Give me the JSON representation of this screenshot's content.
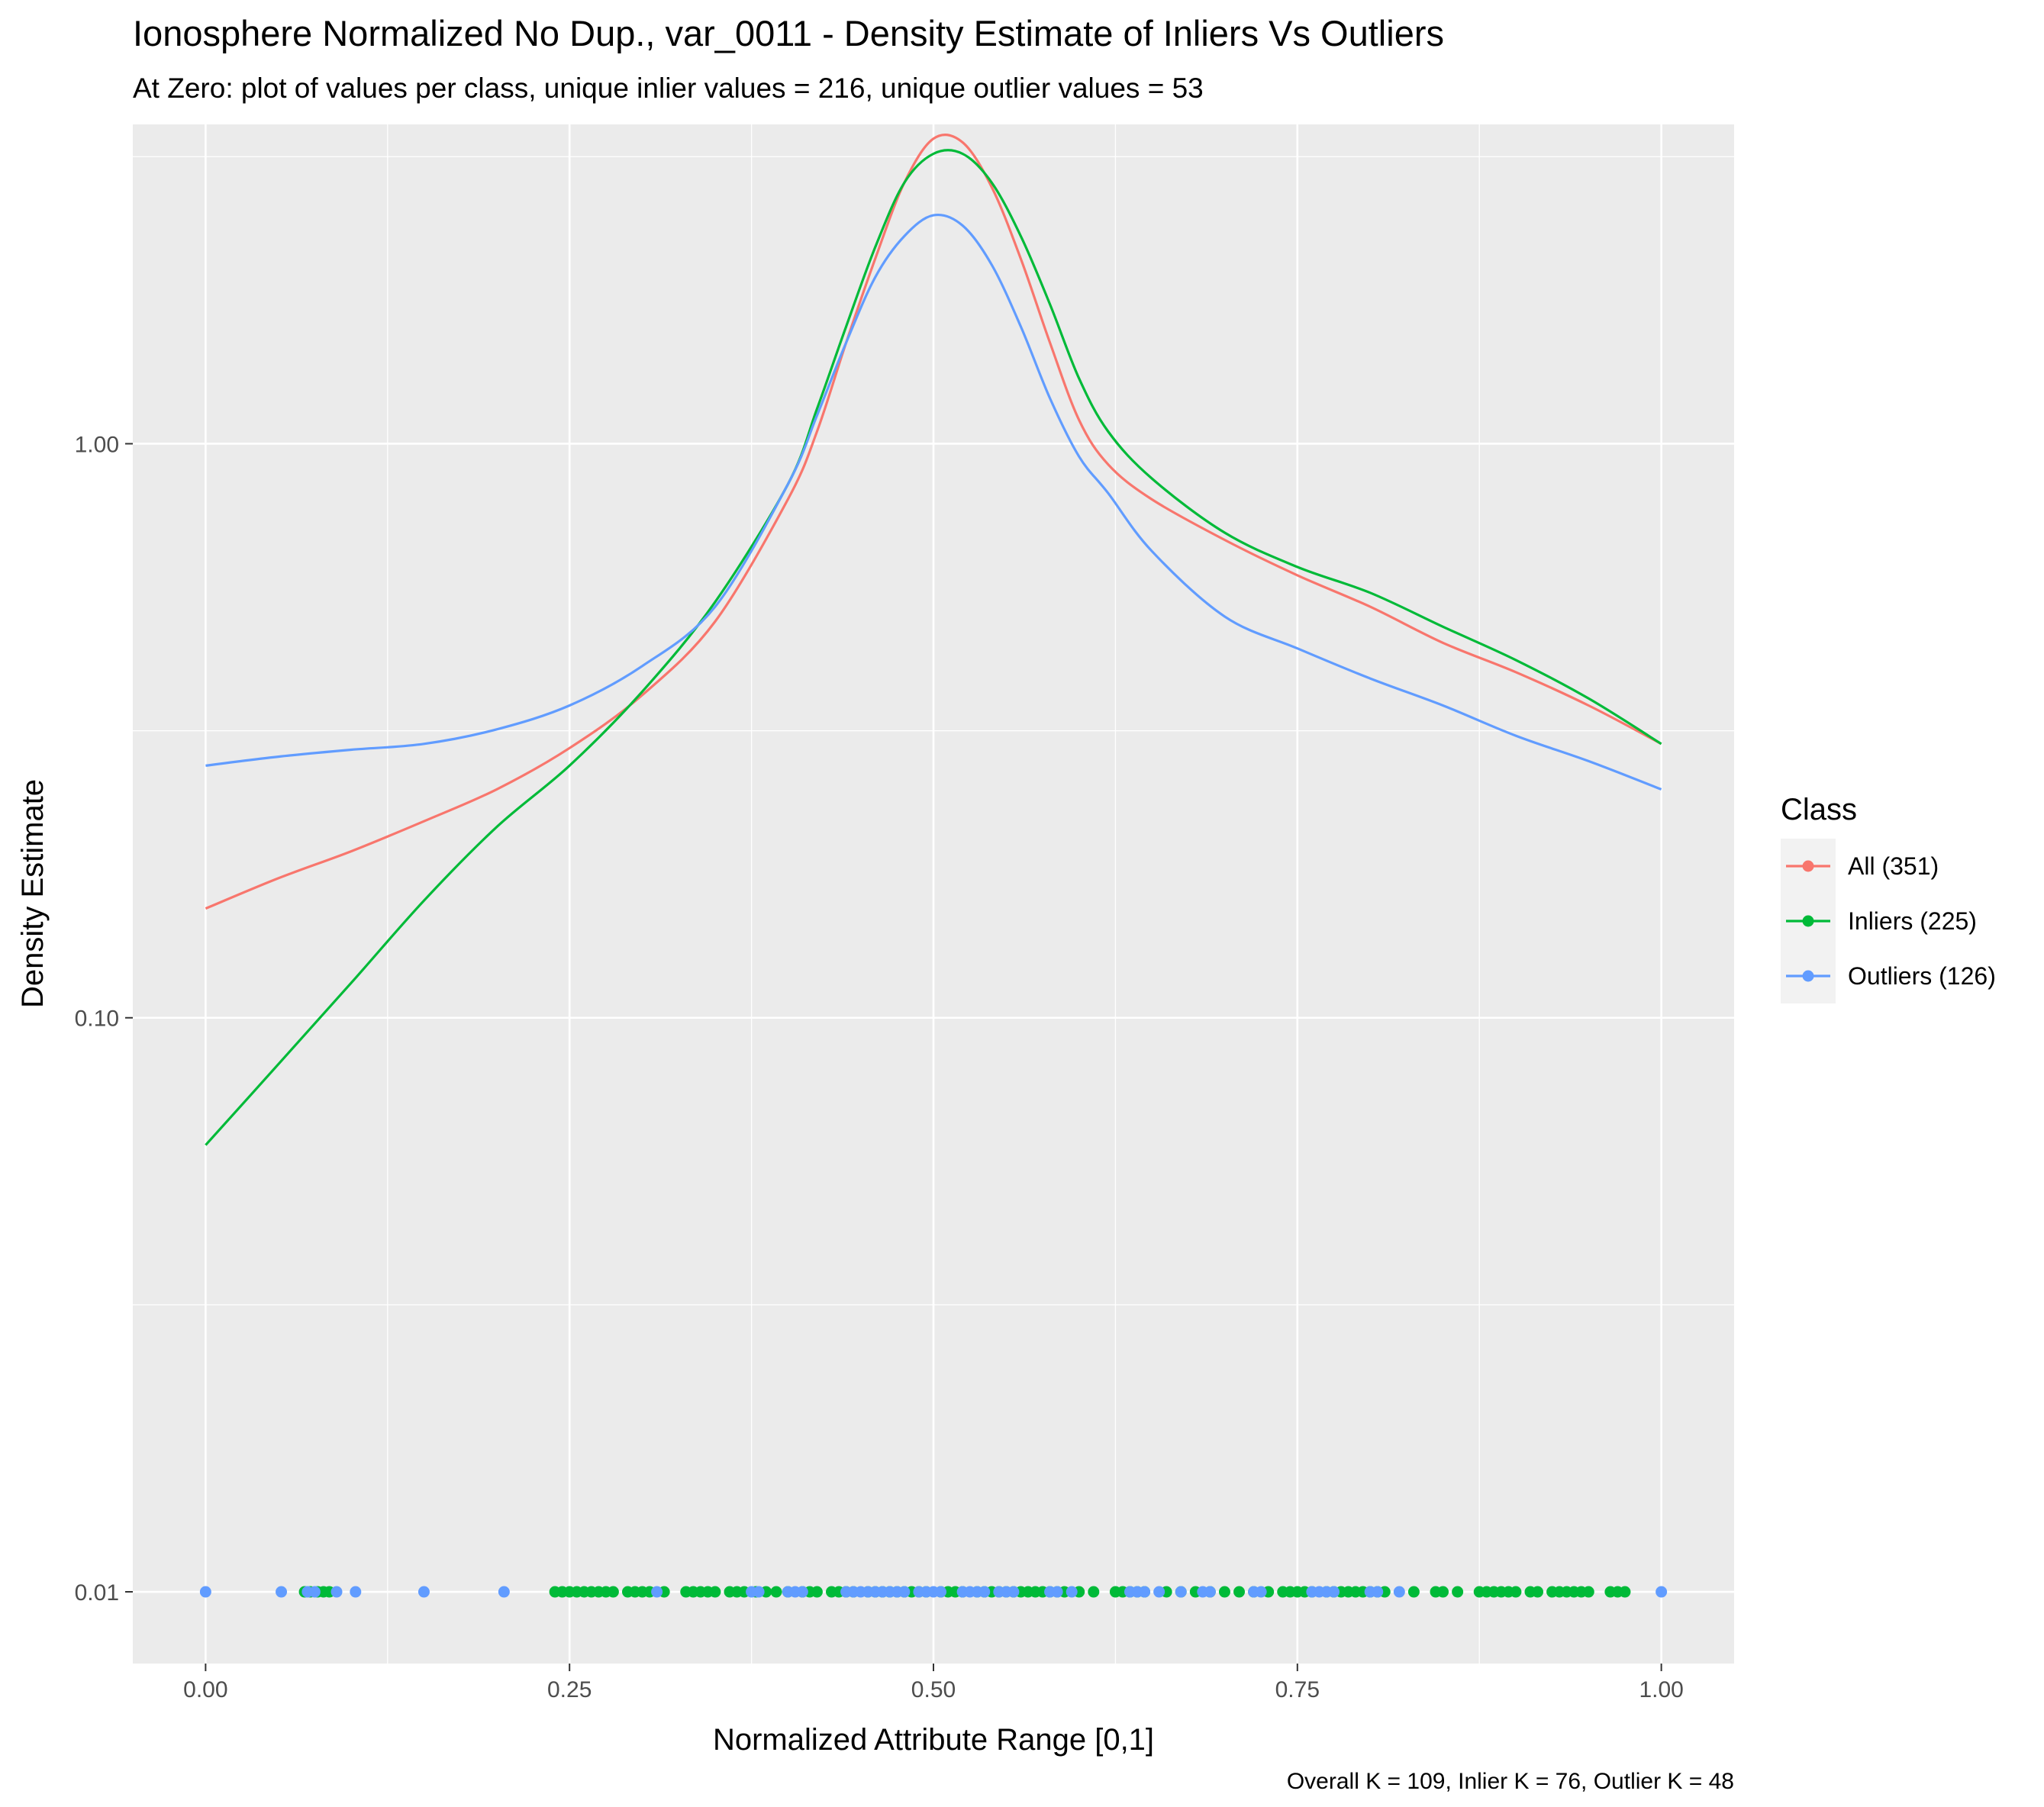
{
  "chart_data": {
    "type": "line",
    "title": "Ionosphere Normalized No Dup., var_0011 - Density Estimate of Inliers Vs Outliers",
    "subtitle": "At Zero: plot of values per class, unique inlier values = 216, unique outlier values = 53",
    "xlabel": "Normalized Attribute Range [0,1]",
    "ylabel": "Density Estimate",
    "caption": "Overall K = 109, Inlier K = 76, Outlier K = 48",
    "x_scale": "linear",
    "y_scale": "log10",
    "xlim": [
      -0.05,
      1.05
    ],
    "ylim": [
      0.0075,
      3.6
    ],
    "x_ticks": [
      0,
      0.25,
      0.5,
      0.75,
      1
    ],
    "x_tick_labels": [
      "0.00",
      "0.25",
      "0.50",
      "0.75",
      "1.00"
    ],
    "y_ticks": [
      0.01,
      0.1,
      1
    ],
    "y_tick_labels": [
      "0.01",
      "0.10",
      "1.00"
    ],
    "grid": true,
    "legend": {
      "title": "Class",
      "position": "right",
      "entries": [
        "All (351)",
        "Inliers (225)",
        "Outliers (126)"
      ]
    },
    "colors": {
      "All (351)": "#F8766D",
      "Inliers (225)": "#00BA38",
      "Outliers (126)": "#619CFF",
      "panel": "#EBEBEB",
      "grid": "#FFFFFF"
    },
    "series": [
      {
        "name": "All (351)",
        "x": [
          0,
          0.05,
          0.1,
          0.15,
          0.2,
          0.25,
          0.3,
          0.35,
          0.4,
          0.42,
          0.44,
          0.46,
          0.48,
          0.5,
          0.52,
          0.54,
          0.56,
          0.58,
          0.6,
          0.62,
          0.65,
          0.7,
          0.75,
          0.8,
          0.85,
          0.9,
          0.95,
          1
        ],
        "y": [
          0.155,
          0.175,
          0.195,
          0.22,
          0.25,
          0.295,
          0.365,
          0.49,
          0.8,
          1.05,
          1.5,
          2.1,
          2.85,
          3.4,
          3.35,
          2.8,
          2.1,
          1.5,
          1.1,
          0.92,
          0.8,
          0.68,
          0.59,
          0.52,
          0.45,
          0.4,
          0.35,
          0.3
        ]
      },
      {
        "name": "Inliers (225)",
        "x": [
          0,
          0.05,
          0.1,
          0.15,
          0.2,
          0.25,
          0.3,
          0.35,
          0.4,
          0.42,
          0.44,
          0.46,
          0.48,
          0.5,
          0.52,
          0.54,
          0.56,
          0.58,
          0.6,
          0.62,
          0.65,
          0.7,
          0.75,
          0.8,
          0.85,
          0.9,
          0.95,
          1
        ],
        "y": [
          0.06,
          0.083,
          0.115,
          0.16,
          0.215,
          0.275,
          0.37,
          0.53,
          0.85,
          1.15,
          1.6,
          2.2,
          2.85,
          3.2,
          3.2,
          2.85,
          2.3,
          1.75,
          1.3,
          1.05,
          0.87,
          0.7,
          0.61,
          0.55,
          0.48,
          0.42,
          0.36,
          0.3
        ]
      },
      {
        "name": "Outliers (126)",
        "x": [
          0,
          0.05,
          0.1,
          0.15,
          0.2,
          0.25,
          0.3,
          0.35,
          0.4,
          0.42,
          0.44,
          0.46,
          0.48,
          0.5,
          0.52,
          0.54,
          0.56,
          0.58,
          0.6,
          0.62,
          0.65,
          0.7,
          0.75,
          0.8,
          0.85,
          0.9,
          0.95,
          1
        ],
        "y": [
          0.275,
          0.285,
          0.293,
          0.3,
          0.318,
          0.35,
          0.41,
          0.52,
          0.85,
          1.12,
          1.5,
          1.95,
          2.3,
          2.5,
          2.4,
          2.05,
          1.6,
          1.2,
          0.95,
          0.82,
          0.65,
          0.5,
          0.44,
          0.39,
          0.35,
          0.31,
          0.28,
          0.25
        ]
      }
    ],
    "rug": {
      "y": 0.01,
      "inliers_x": [
        0.068,
        0.072,
        0.077,
        0.081,
        0.085,
        0.24,
        0.245,
        0.25,
        0.255,
        0.26,
        0.265,
        0.27,
        0.275,
        0.28,
        0.29,
        0.295,
        0.3,
        0.305,
        0.315,
        0.33,
        0.335,
        0.34,
        0.345,
        0.35,
        0.36,
        0.365,
        0.37,
        0.378,
        0.385,
        0.392,
        0.4,
        0.41,
        0.415,
        0.42,
        0.43,
        0.435,
        0.44,
        0.445,
        0.455,
        0.46,
        0.465,
        0.47,
        0.475,
        0.48,
        0.485,
        0.49,
        0.495,
        0.505,
        0.51,
        0.515,
        0.52,
        0.53,
        0.535,
        0.54,
        0.545,
        0.55,
        0.555,
        0.56,
        0.565,
        0.57,
        0.575,
        0.58,
        0.585,
        0.59,
        0.6,
        0.61,
        0.625,
        0.63,
        0.635,
        0.64,
        0.645,
        0.66,
        0.67,
        0.68,
        0.69,
        0.7,
        0.71,
        0.72,
        0.73,
        0.74,
        0.745,
        0.75,
        0.755,
        0.76,
        0.77,
        0.775,
        0.78,
        0.785,
        0.79,
        0.795,
        0.8,
        0.805,
        0.81,
        0.83,
        0.845,
        0.85,
        0.86,
        0.875,
        0.88,
        0.885,
        0.89,
        0.895,
        0.9,
        0.91,
        0.915,
        0.925,
        0.93,
        0.935,
        0.94,
        0.945,
        0.95,
        0.965,
        0.97,
        0.975
      ],
      "outliers_x": [
        0,
        0.052,
        0.07,
        0.075,
        0.09,
        0.103,
        0.15,
        0.205,
        0.31,
        0.375,
        0.38,
        0.4,
        0.405,
        0.41,
        0.44,
        0.445,
        0.45,
        0.455,
        0.46,
        0.465,
        0.47,
        0.475,
        0.48,
        0.49,
        0.495,
        0.5,
        0.505,
        0.52,
        0.525,
        0.53,
        0.535,
        0.545,
        0.55,
        0.555,
        0.58,
        0.585,
        0.595,
        0.635,
        0.64,
        0.645,
        0.655,
        0.67,
        0.685,
        0.69,
        0.72,
        0.725,
        0.76,
        0.765,
        0.77,
        0.775,
        0.8,
        0.805,
        0.82,
        1
      ]
    }
  }
}
